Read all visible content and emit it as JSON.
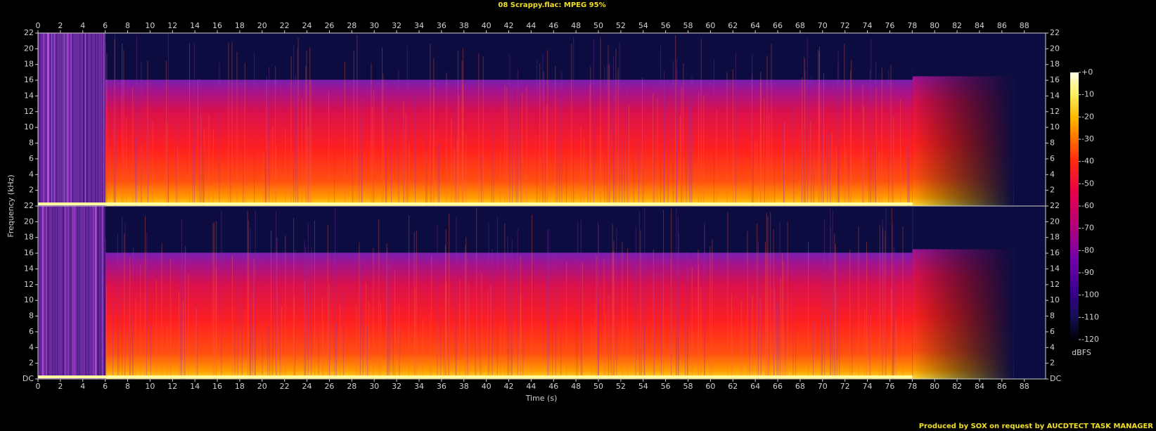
{
  "chart_data": {
    "type": "spectrogram",
    "title": "08 Scrappy.flac: MPEG 95%",
    "xlabel": "Time (s)",
    "ylabel": "Frequency (kHz)",
    "xlim": [
      0,
      89.9
    ],
    "xticks": [
      0,
      2,
      4,
      6,
      8,
      10,
      12,
      14,
      16,
      18,
      20,
      22,
      24,
      26,
      28,
      30,
      32,
      34,
      36,
      38,
      40,
      42,
      44,
      46,
      48,
      50,
      52,
      54,
      56,
      58,
      60,
      62,
      64,
      66,
      68,
      70,
      72,
      74,
      76,
      78,
      80,
      82,
      84,
      86,
      88
    ],
    "ylim": [
      0,
      22
    ],
    "yticks": [
      {
        "value": 0,
        "label": "DC"
      },
      2,
      4,
      6,
      8,
      10,
      12,
      14,
      16,
      18,
      20,
      22
    ],
    "zlim": [
      -120,
      0
    ],
    "zticks": [
      {
        "value": 0,
        "label": "+0"
      },
      -10,
      -20,
      -30,
      -40,
      -50,
      -60,
      -70,
      -80,
      -90,
      -100,
      -110,
      -120
    ],
    "zlabel": "dBFS",
    "footer": "Produced by SOX on request by AUCDTECT TASK MANAGER"
  }
}
